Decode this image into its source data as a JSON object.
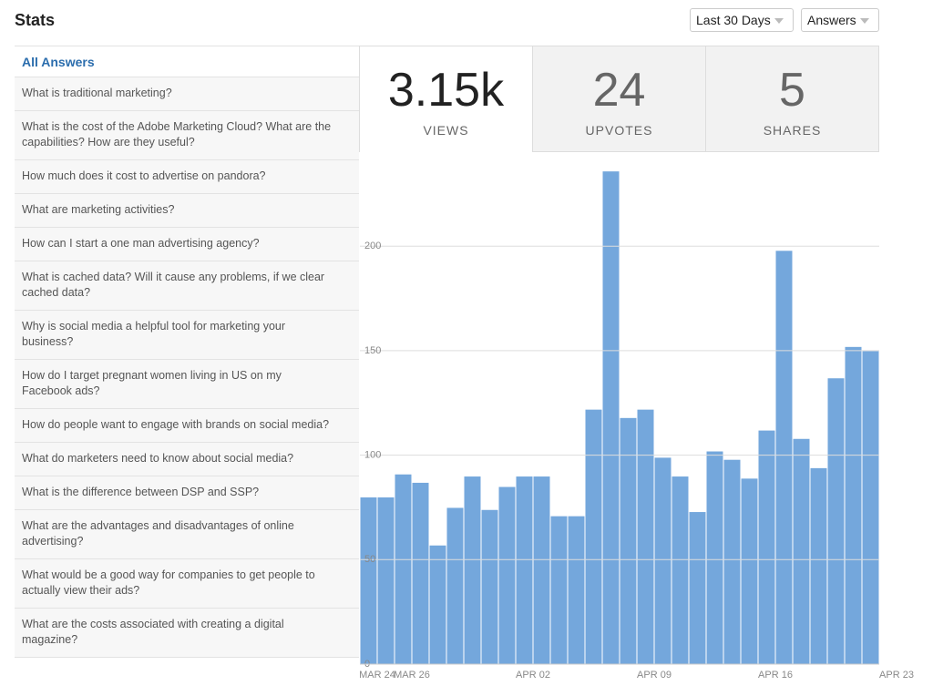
{
  "header": {
    "title": "Stats",
    "range_select": "Last 30 Days",
    "type_select": "Answers"
  },
  "sidebar": {
    "heading": "All Answers",
    "items": [
      "What is traditional marketing?",
      "What is the cost of the Adobe Marketing Cloud? What are the capabilities? How are they useful?",
      "How much does it cost to advertise on pandora?",
      "What are marketing activities?",
      "How can I start a one man advertising agency?",
      "What is cached data? Will it cause any problems, if we clear cached data?",
      "Why is social media a helpful tool for marketing your business?",
      "How do I target pregnant women living in US on my Facebook ads?",
      "How do people want to engage with brands on social media?",
      "What do marketers need to know about social media?",
      "What is the difference between DSP and SSP?",
      "What are the advantages and disadvantages of online advertising?",
      "What would be a good way for companies to get people to actually view their ads?",
      "What are the costs associated with creating a digital magazine?"
    ]
  },
  "stats": [
    {
      "value": "3.15k",
      "label": "VIEWS"
    },
    {
      "value": "24",
      "label": "UPVOTES"
    },
    {
      "value": "5",
      "label": "SHARES"
    }
  ],
  "chart_data": {
    "type": "bar",
    "color": "#74a7dc",
    "values": [
      80,
      80,
      91,
      87,
      57,
      75,
      90,
      74,
      85,
      90,
      90,
      71,
      71,
      122,
      236,
      118,
      122,
      99,
      90,
      73,
      102,
      98,
      89,
      112,
      198,
      108,
      94,
      137,
      152,
      150
    ],
    "xlim": [
      0,
      30
    ],
    "xticks": [
      {
        "value": 1,
        "label": "MAR 24"
      },
      {
        "value": 3,
        "label": "MAR 26"
      },
      {
        "value": 10,
        "label": "APR 02"
      },
      {
        "value": 17,
        "label": "APR 09"
      },
      {
        "value": 24,
        "label": "APR 16"
      },
      {
        "value": 31,
        "label": "APR 23"
      }
    ],
    "ylim": [
      0,
      245
    ],
    "yticks": [
      0,
      50,
      100,
      150,
      200
    ],
    "grid": true
  }
}
